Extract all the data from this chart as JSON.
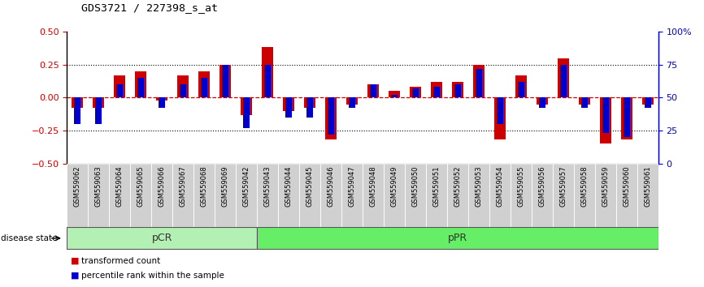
{
  "title": "GDS3721 / 227398_s_at",
  "samples": [
    "GSM559062",
    "GSM559063",
    "GSM559064",
    "GSM559065",
    "GSM559066",
    "GSM559067",
    "GSM559068",
    "GSM559069",
    "GSM559042",
    "GSM559043",
    "GSM559044",
    "GSM559045",
    "GSM559046",
    "GSM559047",
    "GSM559048",
    "GSM559049",
    "GSM559050",
    "GSM559051",
    "GSM559052",
    "GSM559053",
    "GSM559054",
    "GSM559055",
    "GSM559056",
    "GSM559057",
    "GSM559058",
    "GSM559059",
    "GSM559060",
    "GSM559061"
  ],
  "red_values": [
    -0.08,
    -0.08,
    0.17,
    0.2,
    -0.02,
    0.17,
    0.2,
    0.25,
    -0.13,
    0.38,
    -0.1,
    -0.08,
    -0.32,
    -0.05,
    0.1,
    0.05,
    0.08,
    0.12,
    0.12,
    0.25,
    -0.32,
    0.17,
    -0.05,
    0.3,
    -0.05,
    -0.35,
    -0.32,
    -0.05
  ],
  "blue_values_pct": [
    30,
    30,
    60,
    65,
    42,
    60,
    65,
    75,
    27,
    75,
    35,
    35,
    22,
    42,
    60,
    52,
    57,
    58,
    60,
    72,
    30,
    62,
    42,
    75,
    42,
    23,
    20,
    42
  ],
  "pcr_count": 9,
  "ppr_count": 19,
  "ylim_left": [
    -0.5,
    0.5
  ],
  "ylim_right": [
    0,
    100
  ],
  "yticks_left": [
    -0.5,
    -0.25,
    0,
    0.25,
    0.5
  ],
  "yticks_right": [
    0,
    25,
    50,
    75,
    100
  ],
  "ytick_labels_right": [
    "0",
    "25",
    "50",
    "75",
    "100%"
  ],
  "red_color": "#CC0000",
  "blue_color": "#0000CC",
  "pcr_color": "#b3f0b3",
  "ppr_color": "#66ee66",
  "gray_color": "#d0d0d0",
  "background_color": "#ffffff"
}
